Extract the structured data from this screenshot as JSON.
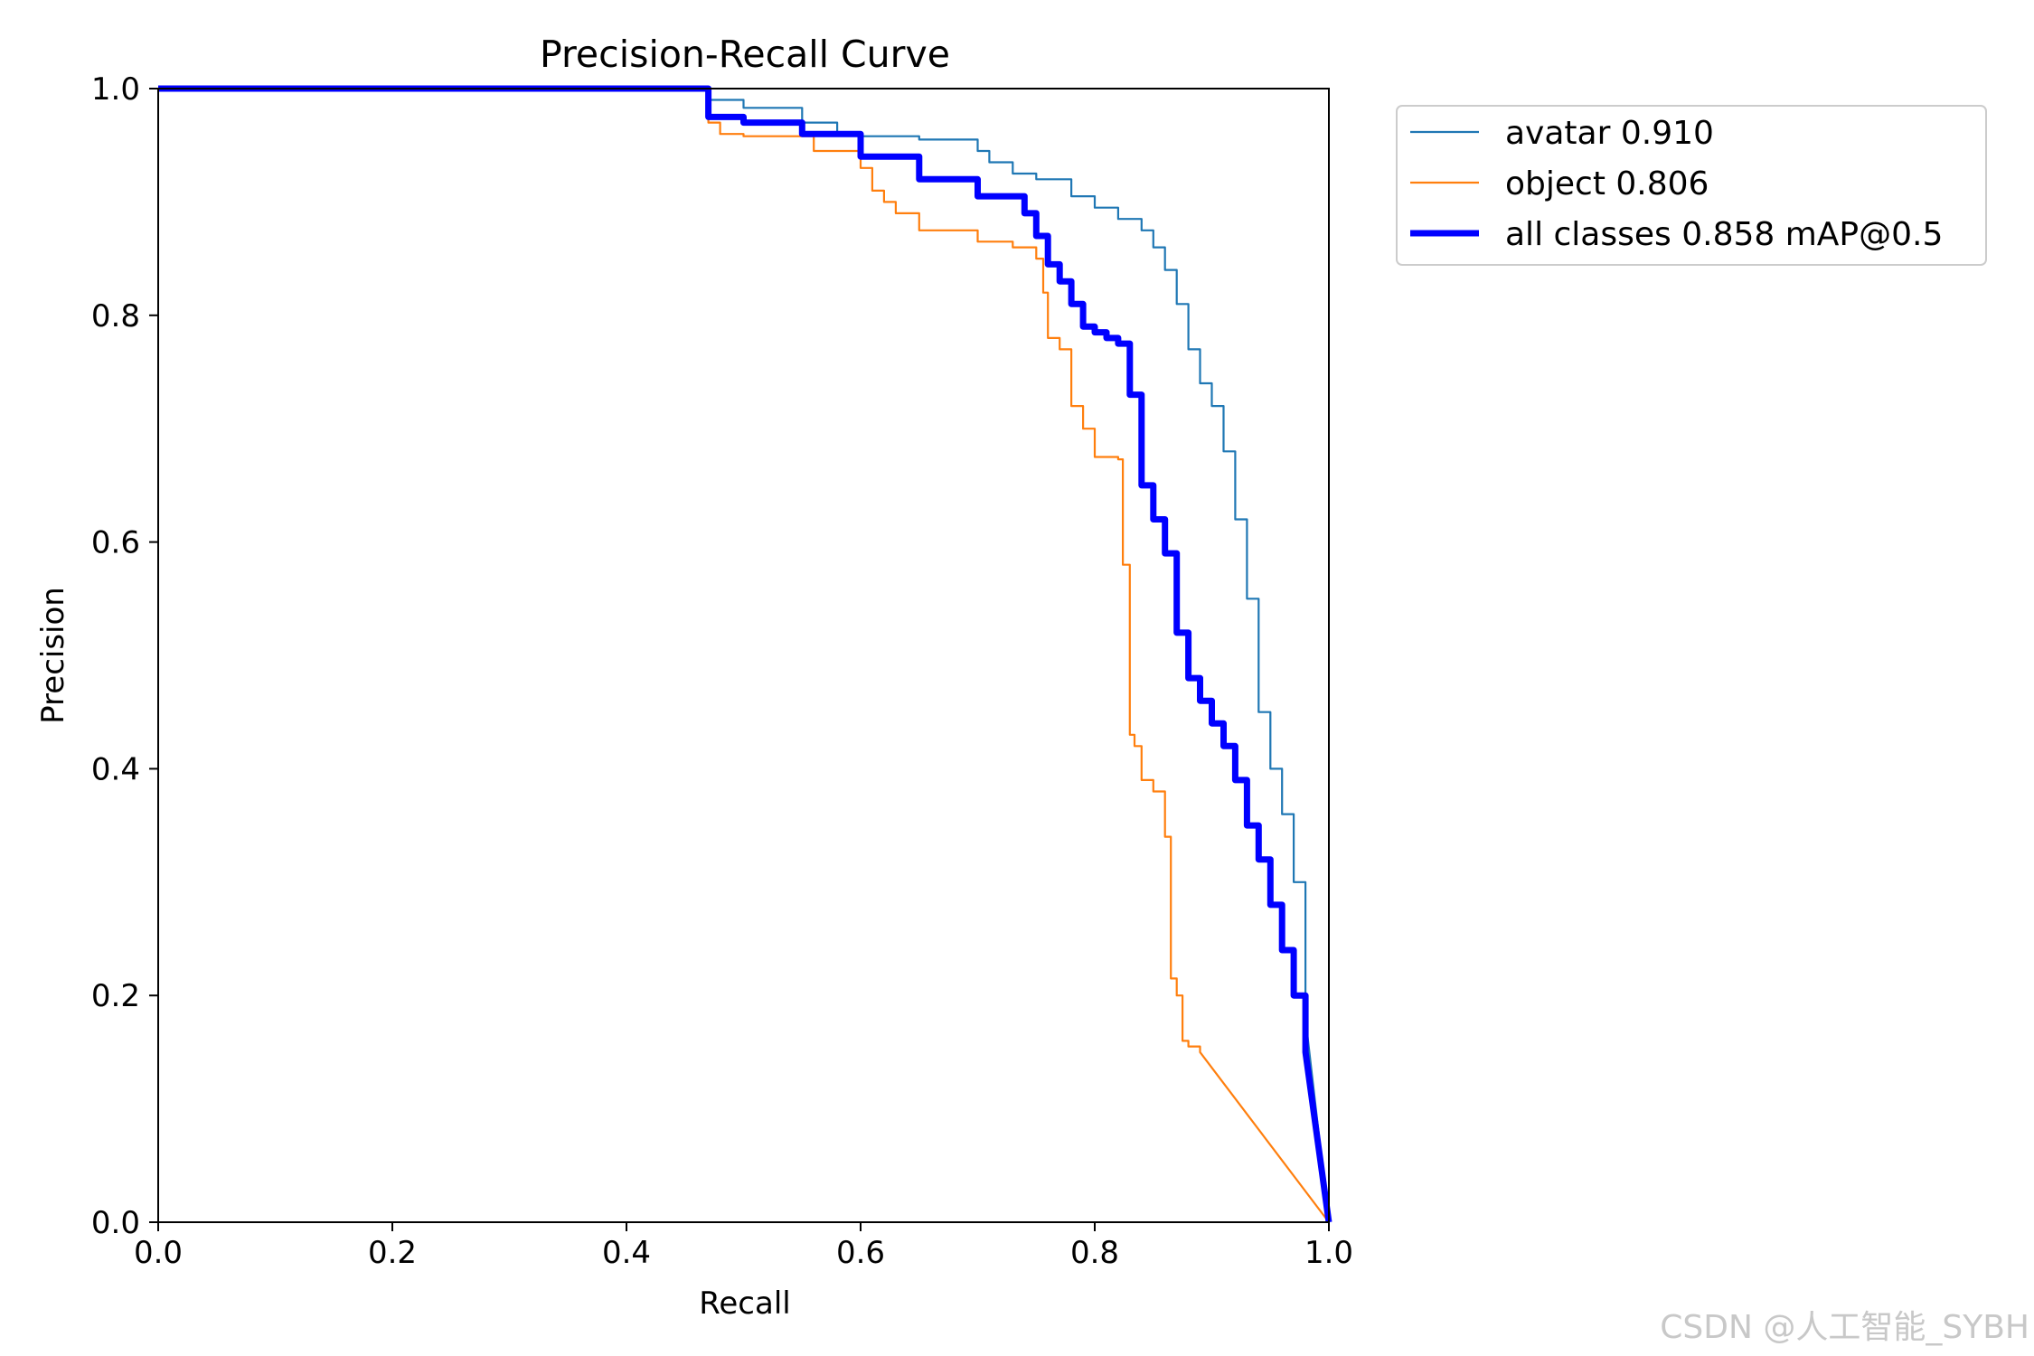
{
  "chart_data": {
    "type": "line",
    "title": "Precision-Recall Curve",
    "xlabel": "Recall",
    "ylabel": "Precision",
    "xlim": [
      0,
      1
    ],
    "ylim": [
      0,
      1
    ],
    "xticks": [
      "0.0",
      "0.2",
      "0.4",
      "0.6",
      "0.8",
      "1.0"
    ],
    "yticks": [
      "0.0",
      "0.2",
      "0.4",
      "0.6",
      "0.8",
      "1.0"
    ],
    "grid": false,
    "legend_position": "outside-top-right",
    "series": [
      {
        "name": "avatar 0.910",
        "color": "#1f77b4",
        "style": "thin",
        "x": [
          0.0,
          0.3,
          0.46,
          0.47,
          0.5,
          0.55,
          0.58,
          0.6,
          0.65,
          0.7,
          0.71,
          0.73,
          0.75,
          0.78,
          0.8,
          0.82,
          0.84,
          0.85,
          0.86,
          0.87,
          0.88,
          0.89,
          0.9,
          0.91,
          0.92,
          0.93,
          0.94,
          0.95,
          0.96,
          0.97,
          0.98,
          1.0
        ],
        "y": [
          1.0,
          1.0,
          1.0,
          0.99,
          0.983,
          0.97,
          0.96,
          0.958,
          0.955,
          0.945,
          0.935,
          0.925,
          0.92,
          0.905,
          0.895,
          0.885,
          0.875,
          0.86,
          0.84,
          0.81,
          0.77,
          0.74,
          0.72,
          0.68,
          0.62,
          0.55,
          0.45,
          0.4,
          0.36,
          0.3,
          0.18,
          0.0
        ]
      },
      {
        "name": "object 0.806",
        "color": "#ff7f0e",
        "style": "thin",
        "x": [
          0.0,
          0.3,
          0.46,
          0.47,
          0.48,
          0.5,
          0.55,
          0.56,
          0.6,
          0.61,
          0.62,
          0.63,
          0.65,
          0.7,
          0.73,
          0.75,
          0.756,
          0.76,
          0.77,
          0.78,
          0.79,
          0.8,
          0.82,
          0.824,
          0.83,
          0.834,
          0.84,
          0.85,
          0.86,
          0.865,
          0.87,
          0.875,
          0.88,
          0.89,
          1.0
        ],
        "y": [
          1.0,
          1.0,
          1.0,
          0.97,
          0.96,
          0.958,
          0.958,
          0.945,
          0.93,
          0.91,
          0.9,
          0.89,
          0.875,
          0.865,
          0.86,
          0.85,
          0.82,
          0.78,
          0.77,
          0.72,
          0.7,
          0.675,
          0.673,
          0.58,
          0.43,
          0.42,
          0.39,
          0.38,
          0.34,
          0.215,
          0.2,
          0.16,
          0.155,
          0.15,
          0.0
        ]
      },
      {
        "name": "all classes 0.858 mAP@0.5",
        "color": "#0000ff",
        "style": "thick",
        "x": [
          0.0,
          0.3,
          0.46,
          0.47,
          0.5,
          0.55,
          0.6,
          0.65,
          0.7,
          0.74,
          0.75,
          0.76,
          0.77,
          0.78,
          0.79,
          0.8,
          0.81,
          0.82,
          0.83,
          0.84,
          0.85,
          0.86,
          0.87,
          0.88,
          0.89,
          0.9,
          0.91,
          0.92,
          0.93,
          0.94,
          0.95,
          0.96,
          0.97,
          0.98,
          1.0
        ],
        "y": [
          1.0,
          1.0,
          1.0,
          0.975,
          0.97,
          0.96,
          0.94,
          0.92,
          0.905,
          0.89,
          0.87,
          0.845,
          0.83,
          0.81,
          0.79,
          0.785,
          0.78,
          0.775,
          0.73,
          0.65,
          0.62,
          0.59,
          0.52,
          0.48,
          0.46,
          0.44,
          0.42,
          0.39,
          0.35,
          0.32,
          0.28,
          0.24,
          0.2,
          0.15,
          0.0
        ]
      }
    ]
  },
  "watermark": "CSDN @人工智能_SYBH"
}
